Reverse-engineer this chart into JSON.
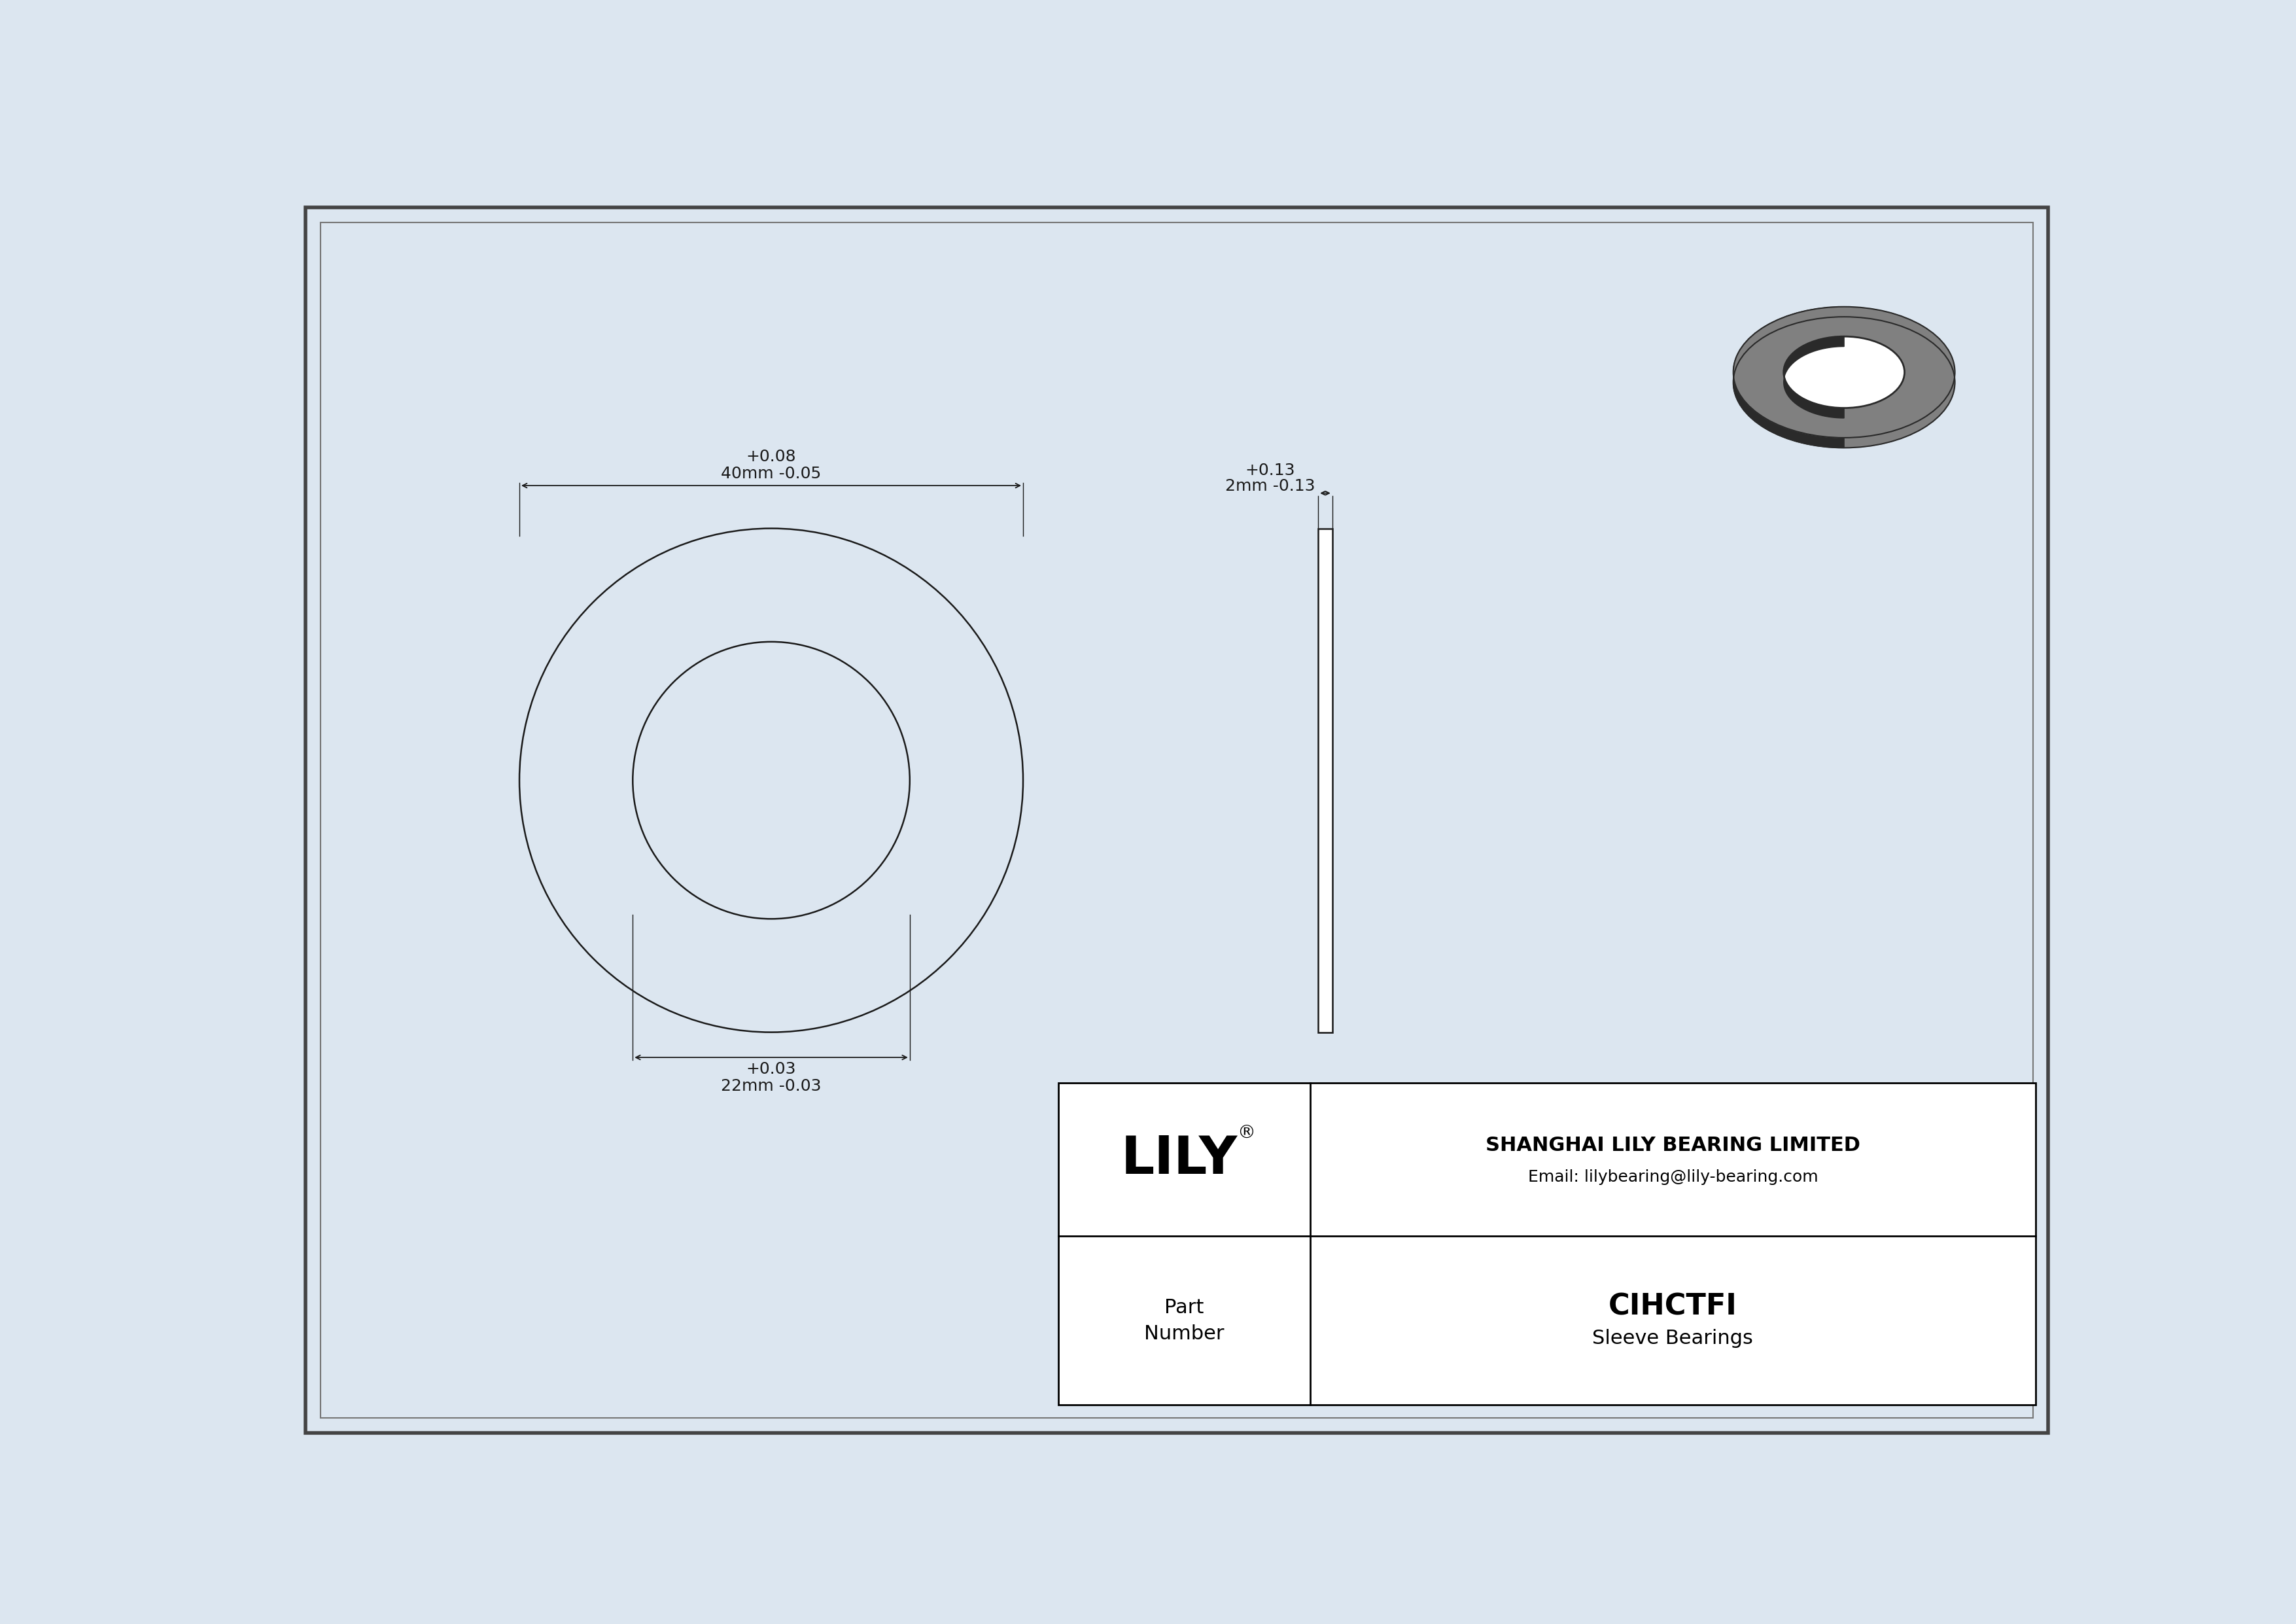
{
  "bg_color": "#dce6f0",
  "border_color": "#555555",
  "line_color": "#1a1a1a",
  "dim_color": "#1a1a1a",
  "font_size_dim": 18,
  "tol_outer_plus": "+0.08",
  "tol_outer_minus": "-0.05",
  "tol_inner_plus": "+0.03",
  "tol_inner_minus": "-0.03",
  "tol_thick_plus": "+0.13",
  "tol_thick_minus": "-0.13",
  "dim_outer_label": "40mm",
  "dim_inner_label": "22mm",
  "dim_thick_label": "2mm",
  "company": "SHANGHAI LILY BEARING LIMITED",
  "email": "Email: lilybearing@lily-bearing.com",
  "brand": "LILY",
  "part_number": "CIHCTFI",
  "part_type": "Sleeve Bearings",
  "gray_3d": "#808080",
  "gray_3d_dark": "#2a2a2a",
  "gray_3d_light": "#b0b0b0"
}
